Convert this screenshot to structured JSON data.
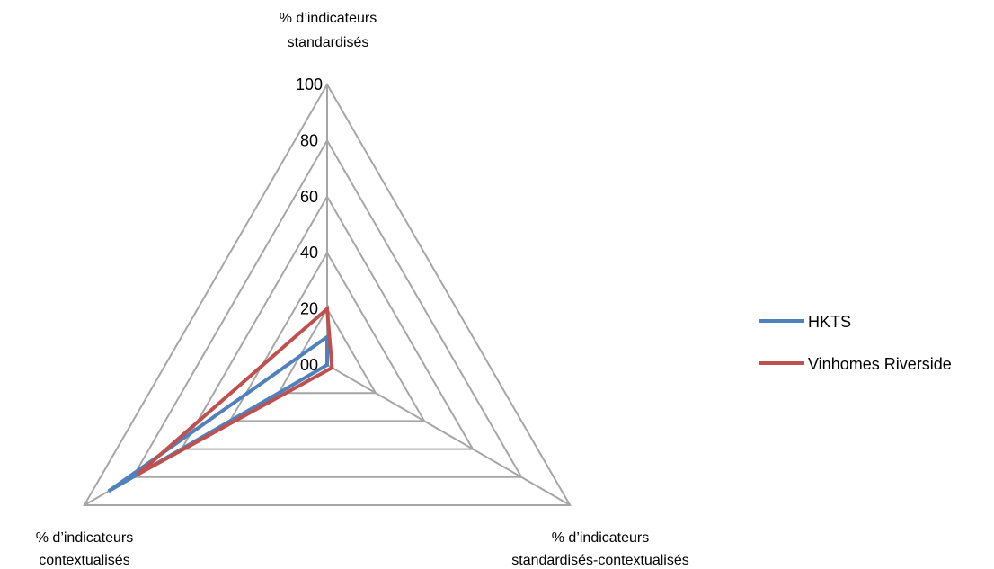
{
  "chart_data": {
    "type": "radar",
    "axes": [
      "% d’indicateurs standardisés",
      "% d’indicateurs standardisés-contextualisés",
      "% d’indicateurs contextualisés"
    ],
    "axis_label_lines": [
      [
        "% d’indicateurs",
        "standardisés"
      ],
      [
        "% d’indicateurs",
        "standardisés-contextualisés"
      ],
      [
        "% d’indicateurs",
        "contextualisés"
      ]
    ],
    "tick_labels": [
      "00",
      "20",
      "40",
      "60",
      "80",
      "100"
    ],
    "rmin": 0,
    "rmax": 100,
    "ticks": [
      0,
      20,
      40,
      60,
      80,
      100
    ],
    "series": [
      {
        "name": "HKTS",
        "values": [
          10,
          0,
          90
        ],
        "color": "#4F81BD"
      },
      {
        "name": "Vinhomes Riverside",
        "values": [
          20,
          2,
          78
        ],
        "color": "#C0504D"
      }
    ],
    "grid_color": "#A6A6A6",
    "legend_position": "right"
  }
}
